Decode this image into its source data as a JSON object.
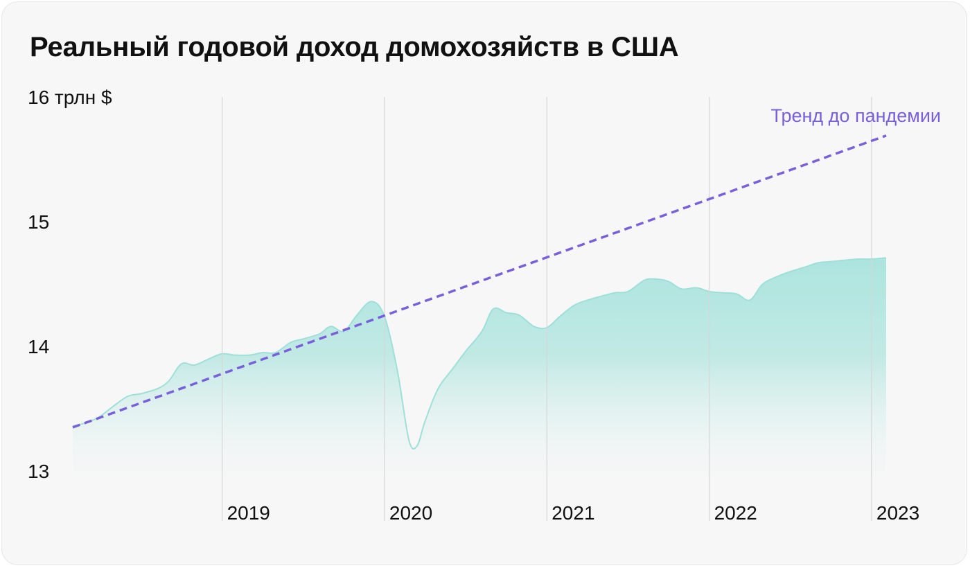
{
  "chart_data": {
    "type": "area",
    "title": "Реальный годовой доход домохозяйств в США",
    "y_unit_label": "16 трлн $",
    "yticks": [
      {
        "value": 13,
        "label": "13"
      },
      {
        "value": 14,
        "label": "14"
      },
      {
        "value": 15,
        "label": "15"
      },
      {
        "value": 16,
        "label": "16 трлн $"
      }
    ],
    "ylim": [
      13,
      16
    ],
    "xlim": [
      2018.08,
      2023.09
    ],
    "xticks": [
      {
        "value": 2019,
        "label": "2019"
      },
      {
        "value": 2020,
        "label": "2020"
      },
      {
        "value": 2021,
        "label": "2021"
      },
      {
        "value": 2022,
        "label": "2022"
      },
      {
        "value": 2023,
        "label": "2023"
      }
    ],
    "series": [
      {
        "name": "",
        "color": "#9ee0d9",
        "points": [
          [
            2018.08,
            13.36
          ],
          [
            2018.17,
            13.39
          ],
          [
            2018.25,
            13.44
          ],
          [
            2018.33,
            13.52
          ],
          [
            2018.42,
            13.6
          ],
          [
            2018.5,
            13.62
          ],
          [
            2018.6,
            13.66
          ],
          [
            2018.67,
            13.72
          ],
          [
            2018.75,
            13.86
          ],
          [
            2018.83,
            13.85
          ],
          [
            2018.92,
            13.9
          ],
          [
            2019.0,
            13.94
          ],
          [
            2019.08,
            13.93
          ],
          [
            2019.17,
            13.93
          ],
          [
            2019.25,
            13.95
          ],
          [
            2019.33,
            13.95
          ],
          [
            2019.42,
            14.03
          ],
          [
            2019.5,
            14.06
          ],
          [
            2019.6,
            14.1
          ],
          [
            2019.67,
            14.16
          ],
          [
            2019.75,
            14.12
          ],
          [
            2019.83,
            14.25
          ],
          [
            2019.92,
            14.36
          ],
          [
            2020.0,
            14.24
          ],
          [
            2020.08,
            13.8
          ],
          [
            2020.15,
            13.25
          ],
          [
            2020.2,
            13.2
          ],
          [
            2020.25,
            13.4
          ],
          [
            2020.33,
            13.66
          ],
          [
            2020.42,
            13.82
          ],
          [
            2020.5,
            13.96
          ],
          [
            2020.6,
            14.12
          ],
          [
            2020.67,
            14.3
          ],
          [
            2020.75,
            14.27
          ],
          [
            2020.83,
            14.25
          ],
          [
            2020.92,
            14.16
          ],
          [
            2021.0,
            14.15
          ],
          [
            2021.08,
            14.24
          ],
          [
            2021.17,
            14.33
          ],
          [
            2021.25,
            14.37
          ],
          [
            2021.33,
            14.4
          ],
          [
            2021.42,
            14.43
          ],
          [
            2021.5,
            14.44
          ],
          [
            2021.6,
            14.53
          ],
          [
            2021.67,
            14.54
          ],
          [
            2021.75,
            14.52
          ],
          [
            2021.83,
            14.46
          ],
          [
            2021.92,
            14.47
          ],
          [
            2022.0,
            14.44
          ],
          [
            2022.08,
            14.43
          ],
          [
            2022.17,
            14.42
          ],
          [
            2022.25,
            14.37
          ],
          [
            2022.33,
            14.5
          ],
          [
            2022.42,
            14.56
          ],
          [
            2022.5,
            14.6
          ],
          [
            2022.6,
            14.64
          ],
          [
            2022.67,
            14.67
          ],
          [
            2022.75,
            14.68
          ],
          [
            2022.83,
            14.69
          ],
          [
            2022.92,
            14.7
          ],
          [
            2023.0,
            14.7
          ],
          [
            2023.09,
            14.71
          ]
        ]
      }
    ],
    "trend": {
      "name": "Тренд до пандемии",
      "color": "#7a5fdb",
      "points": [
        [
          2018.08,
          13.35
        ],
        [
          2023.09,
          15.69
        ]
      ]
    },
    "grid": "vertical lines at year ticks",
    "legend": "none"
  }
}
